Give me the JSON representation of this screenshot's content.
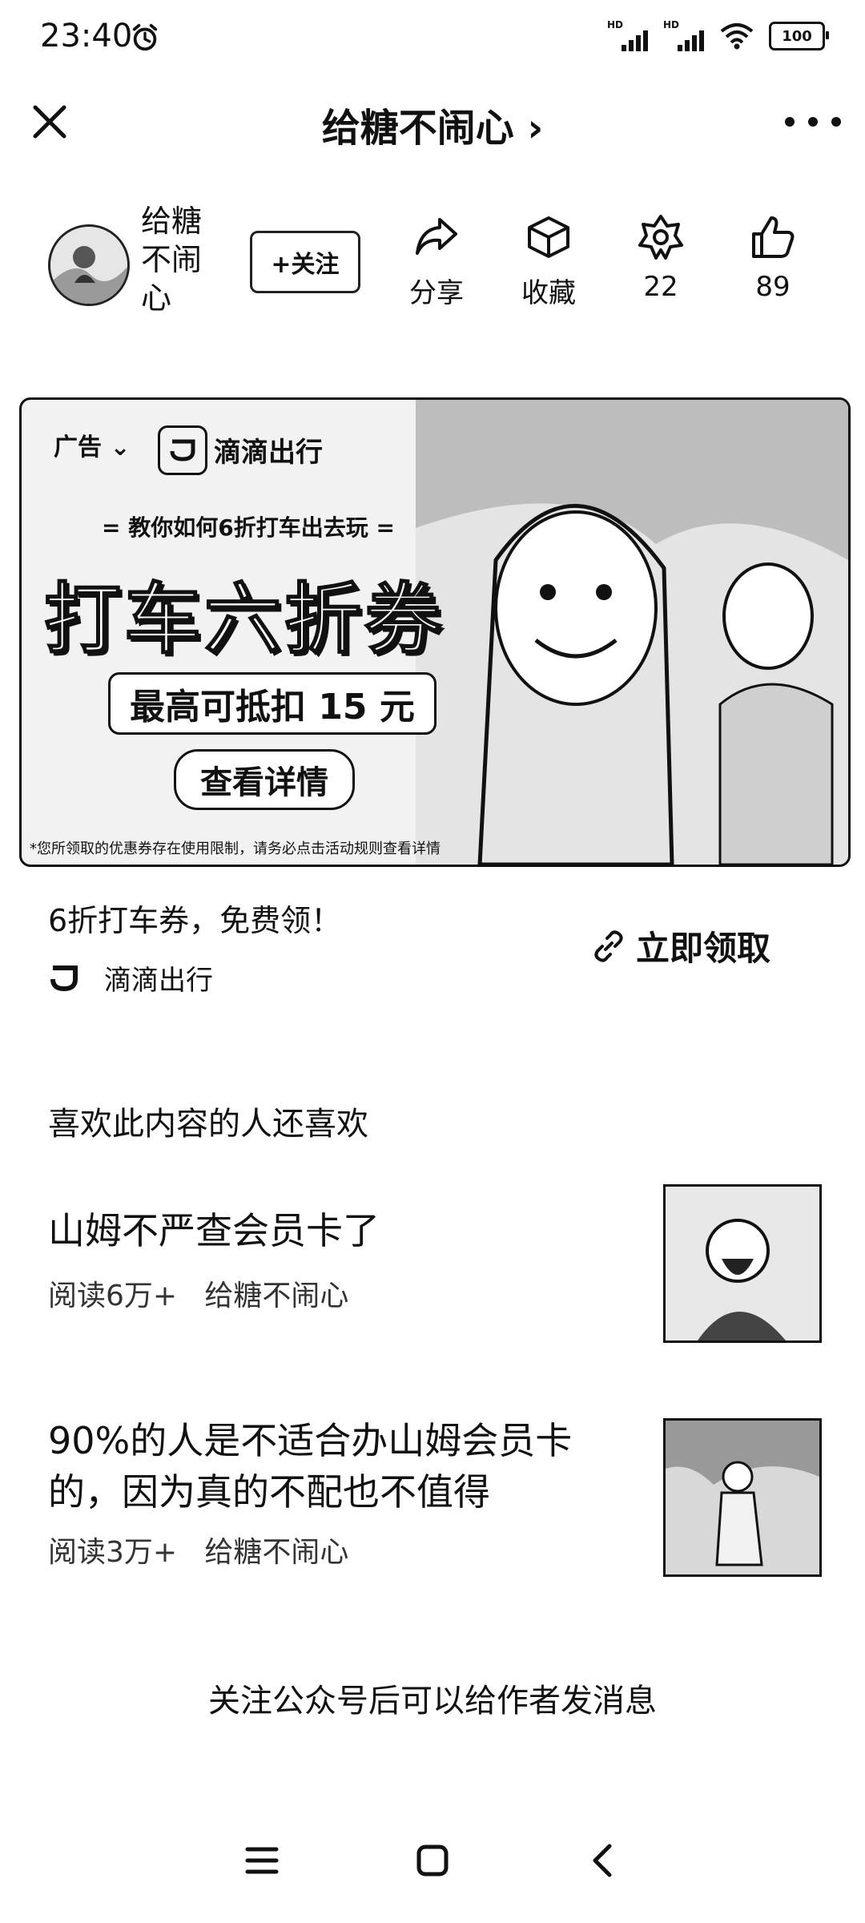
{
  "status_bar": {
    "time": "23:40",
    "battery": "100",
    "network": "HD"
  },
  "nav": {
    "title": "给糖不闹心 ›"
  },
  "author": {
    "name": "给糖不闹心",
    "follow_label": "+关注",
    "actions": [
      {
        "icon": "share-icon",
        "label": "分享"
      },
      {
        "icon": "bookmark-box-icon",
        "label": "收藏"
      },
      {
        "icon": "star-badge-icon",
        "label": "22"
      },
      {
        "icon": "thumbs-up-icon",
        "label": "89"
      }
    ]
  },
  "ad": {
    "tag": "广告",
    "brand": "滴滴出行",
    "subtitle": "= 教你如何6折打车出去玩 =",
    "headline": "打车六折券",
    "discount": "最高可抵扣 15 元",
    "cta": "查看详情",
    "disclaimer": "*您所领取的优惠券存在使用限制，请务必点击活动规则查看详情",
    "caption": "6折打车券，免费领！",
    "source": "滴滴出行",
    "claim_label": "立即领取"
  },
  "recommendations": {
    "heading": "喜欢此内容的人还喜欢",
    "items": [
      {
        "title": "山姆不严查会员卡了",
        "reads": "阅读6万+",
        "author": "给糖不闹心"
      },
      {
        "title": "90%的人是不适合办山姆会员卡的，因为真的不配也不值得",
        "reads": "阅读3万+",
        "author": "给糖不闹心"
      }
    ]
  },
  "footer": {
    "note": "关注公众号后可以给作者发消息"
  }
}
